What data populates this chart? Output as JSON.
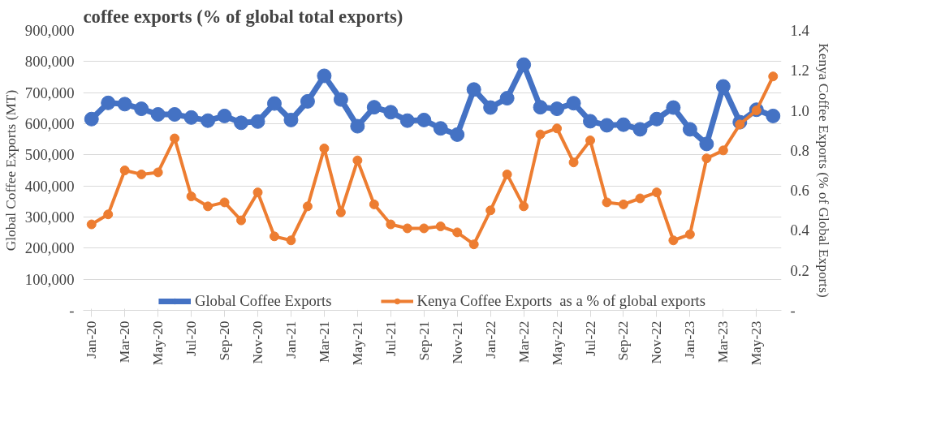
{
  "chart_data": {
    "type": "line",
    "title": "coffee exports (% of global total exports)",
    "ylabel": "Global Coffee Exports (MT)",
    "y2label": "Kenya Coffee Exports (% of Global Exports)",
    "categories": [
      "Jan-20",
      null,
      "Mar-20",
      null,
      "May-20",
      null,
      "Jul-20",
      null,
      "Sep-20",
      null,
      "Nov-20",
      null,
      "Jan-21",
      null,
      "Mar-21",
      null,
      "May-21",
      null,
      "Jul-21",
      null,
      "Sep-21",
      null,
      "Nov-21",
      null,
      "Jan-22",
      null,
      "Mar-22",
      null,
      "May-22",
      null,
      "Jul-22",
      null,
      "Sep-22",
      null,
      "Nov-22",
      null,
      "Jan-23",
      null,
      "Mar-23",
      null,
      "May-23",
      null
    ],
    "series": [
      {
        "name": "Global Coffee Exports",
        "color": "#4472c4",
        "values": [
          615000,
          667000,
          663000,
          648000,
          630000,
          630000,
          620000,
          610000,
          625000,
          603000,
          607000,
          665000,
          612000,
          672000,
          754000,
          678000,
          592000,
          653000,
          637000,
          610000,
          612000,
          585000,
          565000,
          710000,
          652000,
          682000,
          790000,
          653000,
          648000,
          666000,
          608000,
          595000,
          597000,
          582000,
          615000,
          652000,
          582000,
          535000,
          720000,
          605000,
          645000,
          625000
        ]
      },
      {
        "name": "Kenya Coffee Exports  as a % of global exports",
        "color": "#ed7d31",
        "axis": "y2",
        "values": [
          0.43,
          0.48,
          0.7,
          0.68,
          0.69,
          0.86,
          0.57,
          0.52,
          0.54,
          0.45,
          0.59,
          0.37,
          0.35,
          0.52,
          0.81,
          0.49,
          0.75,
          0.53,
          0.43,
          0.41,
          0.41,
          0.42,
          0.39,
          0.33,
          0.5,
          0.68,
          0.52,
          0.88,
          0.91,
          0.74,
          0.85,
          0.54,
          0.53,
          0.56,
          0.59,
          0.35,
          0.38,
          0.76,
          0.8,
          0.93,
          1.0,
          1.17
        ]
      }
    ],
    "ylim": [
      0,
      900000
    ],
    "yticks": [
      {
        "value": 0,
        "label": "-"
      },
      {
        "value": 100000,
        "label": "100,000"
      },
      {
        "value": 200000,
        "label": "200,000"
      },
      {
        "value": 300000,
        "label": "300,000"
      },
      {
        "value": 400000,
        "label": "400,000"
      },
      {
        "value": 500000,
        "label": "500,000"
      },
      {
        "value": 600000,
        "label": "600,000"
      },
      {
        "value": 700000,
        "label": "700,000"
      },
      {
        "value": 800000,
        "label": "800,000"
      },
      {
        "value": 900000,
        "label": "900,000"
      }
    ],
    "y2lim": [
      0,
      1.4
    ],
    "y2ticks": [
      {
        "value": 0,
        "label": "-"
      },
      {
        "value": 0.2,
        "label": "0.2"
      },
      {
        "value": 0.4,
        "label": "0.4"
      },
      {
        "value": 0.6,
        "label": "0.6"
      },
      {
        "value": 0.8,
        "label": "0.8"
      },
      {
        "value": 1.0,
        "label": "1.0"
      },
      {
        "value": 1.2,
        "label": "1.2"
      },
      {
        "value": 1.4,
        "label": "1.4"
      }
    ],
    "grid": "y",
    "legend": "bottom",
    "marker": "circle",
    "line_style": "solid"
  }
}
